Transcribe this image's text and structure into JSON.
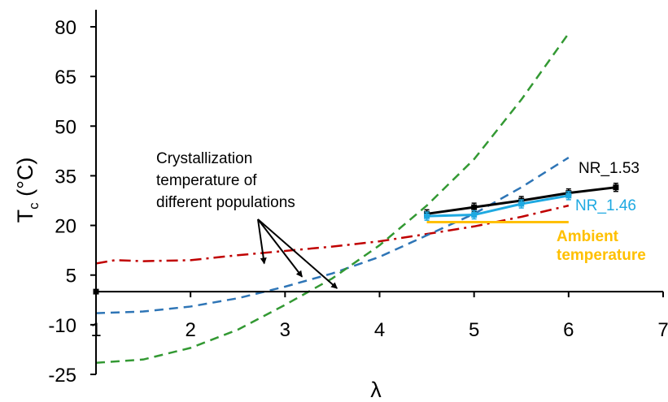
{
  "chart_data": {
    "type": "line",
    "xlabel": "λ",
    "ylabel_main": "T",
    "ylabel_sub": "c",
    "ylabel_unit": " (°C)",
    "xlim": [
      1,
      7
    ],
    "ylim": [
      -25,
      80
    ],
    "xticks": [
      1,
      2,
      3,
      4,
      5,
      6,
      7
    ],
    "yticks": [
      -25,
      -10,
      5,
      20,
      35,
      50,
      65,
      80
    ],
    "grid": false,
    "legend": "none",
    "series": [
      {
        "name": "NR_1.53",
        "color": "#000000",
        "style": "solid",
        "markers": true,
        "error_bars": true,
        "points": [
          [
            4.5,
            23.5
          ],
          [
            5.0,
            25.5
          ],
          [
            5.5,
            27.5
          ],
          [
            6.0,
            29.8
          ],
          [
            6.5,
            31.5
          ]
        ]
      },
      {
        "name": "NR_1.46",
        "color": "#1ea9e1",
        "style": "solid",
        "markers": true,
        "error_bars": true,
        "points": [
          [
            4.5,
            22.8
          ],
          [
            5.0,
            23.2
          ],
          [
            5.5,
            26.5
          ],
          [
            6.0,
            29.0
          ]
        ]
      },
      {
        "name": "Ambient temperature",
        "label_lines": [
          "Ambient",
          "temperature"
        ],
        "color": "#ffc000",
        "style": "solid",
        "markers": false,
        "points": [
          [
            4.5,
            21
          ],
          [
            6.0,
            21
          ]
        ]
      },
      {
        "name": "",
        "color": "#c00000",
        "style": "dashdot",
        "points": [
          [
            1.0,
            8.5
          ],
          [
            1.2,
            9.5
          ],
          [
            1.5,
            9.2
          ],
          [
            2.0,
            9.5
          ],
          [
            2.5,
            11.0
          ],
          [
            3.0,
            12.3
          ],
          [
            3.5,
            13.6
          ],
          [
            4.0,
            15.2
          ],
          [
            4.5,
            17.4
          ],
          [
            5.0,
            19.7
          ],
          [
            5.5,
            22.6
          ],
          [
            6.0,
            26.0
          ]
        ]
      },
      {
        "name": "",
        "color": "#2e75b6",
        "style": "dashed",
        "points": [
          [
            1.0,
            -6.5
          ],
          [
            1.5,
            -6.0
          ],
          [
            2.0,
            -4.5
          ],
          [
            2.5,
            -2.0
          ],
          [
            3.0,
            1.5
          ],
          [
            3.5,
            5.5
          ],
          [
            4.0,
            10.5
          ],
          [
            4.5,
            17.0
          ],
          [
            5.0,
            23.5
          ],
          [
            5.5,
            31.5
          ],
          [
            6.0,
            40.5
          ]
        ]
      },
      {
        "name": "",
        "color": "#339933",
        "style": "dashed",
        "points": [
          [
            1.0,
            -21.5
          ],
          [
            1.5,
            -20.5
          ],
          [
            2.0,
            -17.0
          ],
          [
            2.5,
            -11.5
          ],
          [
            3.0,
            -4.0
          ],
          [
            3.5,
            4.0
          ],
          [
            4.0,
            14.0
          ],
          [
            4.5,
            26.0
          ],
          [
            5.0,
            40.0
          ],
          [
            5.5,
            58.0
          ],
          [
            6.0,
            78.0
          ]
        ]
      }
    ],
    "extra_points": [
      [
        1.0,
        0.0
      ]
    ],
    "annotation": {
      "lines": [
        "Crystallization",
        "temperature of",
        "different populations"
      ],
      "arrow_targets": [
        [
          2.78,
          8.5
        ],
        [
          3.18,
          4.5
        ],
        [
          3.55,
          1.0
        ]
      ]
    }
  }
}
